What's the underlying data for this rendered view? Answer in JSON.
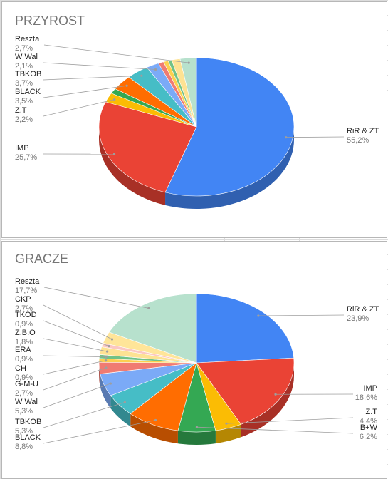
{
  "chart_data": [
    {
      "type": "pie",
      "title": "PRZYROST",
      "slices": [
        {
          "label": "RiR & ZT",
          "value": 55.2,
          "value_text": "55,2%",
          "color": "#4285f4",
          "labeled": true
        },
        {
          "label": "IMP",
          "value": 25.7,
          "value_text": "25,7%",
          "color": "#ea4335",
          "labeled": true
        },
        {
          "label": "Z.T",
          "value": 2.2,
          "value_text": "2,2%",
          "color": "#fbbc04",
          "labeled": true
        },
        {
          "label": "",
          "value": 1.2,
          "value_text": "",
          "color": "#34a853",
          "labeled": false
        },
        {
          "label": "BLACK",
          "value": 3.5,
          "value_text": "3,5%",
          "color": "#ff6d01",
          "labeled": true
        },
        {
          "label": "TBKOB",
          "value": 3.7,
          "value_text": "3,7%",
          "color": "#46bdc6",
          "labeled": true
        },
        {
          "label": "W Wal",
          "value": 2.1,
          "value_text": "2,1%",
          "color": "#7baaf7",
          "labeled": true
        },
        {
          "label": "",
          "value": 0.9,
          "value_text": "",
          "color": "#f07b72",
          "labeled": false
        },
        {
          "label": "",
          "value": 0.8,
          "value_text": "",
          "color": "#fcd04f",
          "labeled": false
        },
        {
          "label": "",
          "value": 0.6,
          "value_text": "",
          "color": "#71c287",
          "labeled": false
        },
        {
          "label": "",
          "value": 1.4,
          "value_text": "",
          "color": "#fde293",
          "labeled": false
        },
        {
          "label": "Reszta",
          "value": 2.7,
          "value_text": "2,7%",
          "color": "#b7e1cd",
          "labeled": true
        }
      ]
    },
    {
      "type": "pie",
      "title": "GRACZE",
      "slices": [
        {
          "label": "RiR & ZT",
          "value": 23.9,
          "value_text": "23,9%",
          "color": "#4285f4",
          "labeled": true
        },
        {
          "label": "IMP",
          "value": 18.6,
          "value_text": "18,6%",
          "color": "#ea4335",
          "labeled": true
        },
        {
          "label": "Z.T",
          "value": 4.4,
          "value_text": "4,4%",
          "color": "#fbbc04",
          "labeled": true
        },
        {
          "label": "B+W",
          "value": 6.2,
          "value_text": "6,2%",
          "color": "#34a853",
          "labeled": true
        },
        {
          "label": "BLACK",
          "value": 8.8,
          "value_text": "8,8%",
          "color": "#ff6d01",
          "labeled": true
        },
        {
          "label": "TBKOB",
          "value": 5.3,
          "value_text": "5,3%",
          "color": "#46bdc6",
          "labeled": true
        },
        {
          "label": "W Wal",
          "value": 5.3,
          "value_text": "5,3%",
          "color": "#7baaf7",
          "labeled": true
        },
        {
          "label": "G-M-U",
          "value": 2.7,
          "value_text": "2,7%",
          "color": "#f07b72",
          "labeled": true
        },
        {
          "label": "CH",
          "value": 0.9,
          "value_text": "0,9%",
          "color": "#fcd04f",
          "labeled": true
        },
        {
          "label": "ERA",
          "value": 0.9,
          "value_text": "0,9%",
          "color": "#71c287",
          "labeled": true
        },
        {
          "label": "Z.B.O",
          "value": 1.8,
          "value_text": "1,8%",
          "color": "#fde293",
          "labeled": true
        },
        {
          "label": "TKOD",
          "value": 0.9,
          "value_text": "0,9%",
          "color": "#fbc7c2",
          "labeled": true
        },
        {
          "label": "CKP",
          "value": 2.7,
          "value_text": "2,7%",
          "color": "#ffe599",
          "labeled": true
        },
        {
          "label": "Reszta",
          "value": 17.7,
          "value_text": "17,7%",
          "color": "#b7e1cd",
          "labeled": true
        }
      ]
    }
  ]
}
